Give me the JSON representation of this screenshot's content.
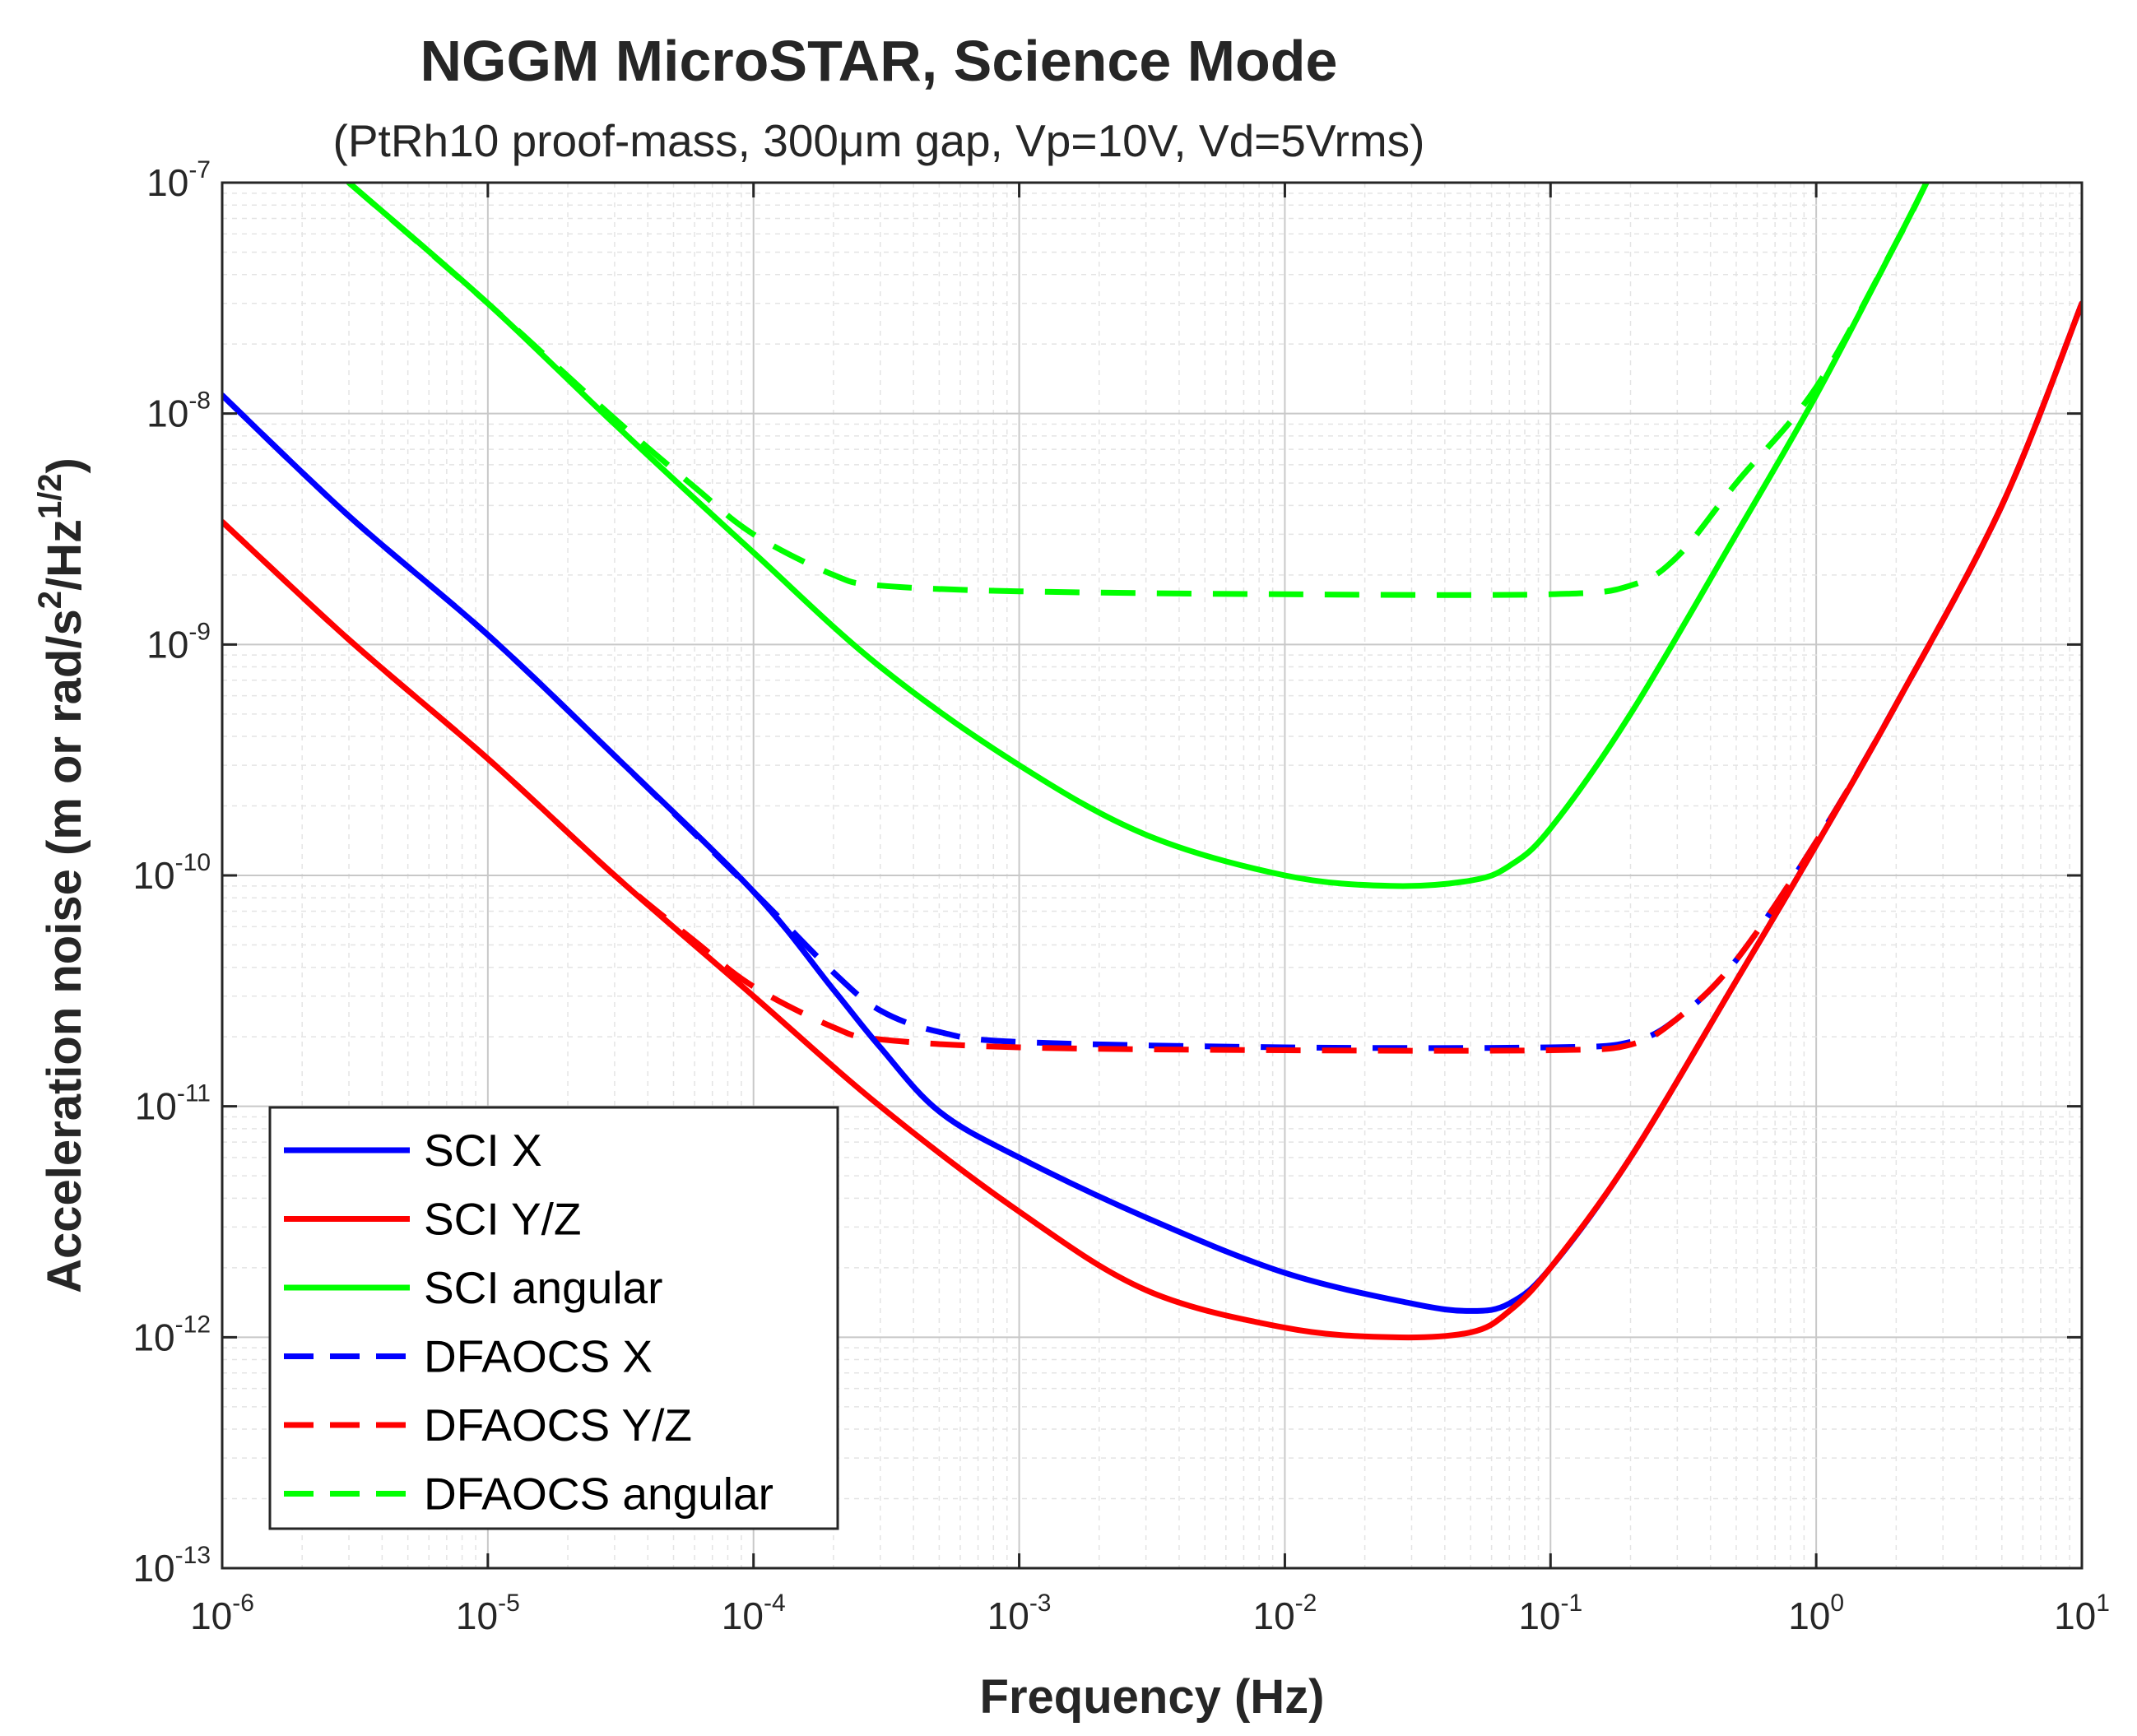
{
  "chart_data": {
    "type": "line",
    "title": "NGGM MicroSTAR, Science Mode",
    "subtitle": "(PtRh10 proof-mass, 300μm gap, Vp=10V, Vd=5Vrms)",
    "xlabel": "Frequency (Hz)",
    "ylabel": "Acceleration noise (m or rad/s",
    "ylabel_sup1": "2",
    "ylabel_mid": "/Hz",
    "ylabel_sup2": "1/2",
    "ylabel_end": ")",
    "xscale": "log",
    "yscale": "log",
    "xlim": [
      1e-06,
      10
    ],
    "ylim": [
      1e-13,
      1e-07
    ],
    "grid": true,
    "legend_position": "bottom-left",
    "xticks": [
      {
        "value": 1e-06,
        "base": "10",
        "exp": "-6"
      },
      {
        "value": 1e-05,
        "base": "10",
        "exp": "-5"
      },
      {
        "value": 0.0001,
        "base": "10",
        "exp": "-4"
      },
      {
        "value": 0.001,
        "base": "10",
        "exp": "-3"
      },
      {
        "value": 0.01,
        "base": "10",
        "exp": "-2"
      },
      {
        "value": 0.1,
        "base": "10",
        "exp": "-1"
      },
      {
        "value": 1,
        "base": "10",
        "exp": "0"
      },
      {
        "value": 10,
        "base": "10",
        "exp": "1"
      }
    ],
    "yticks": [
      {
        "value": 1e-13,
        "base": "10",
        "exp": "-13"
      },
      {
        "value": 1e-12,
        "base": "10",
        "exp": "-12"
      },
      {
        "value": 1e-11,
        "base": "10",
        "exp": "-11"
      },
      {
        "value": 1e-10,
        "base": "10",
        "exp": "-10"
      },
      {
        "value": 1e-09,
        "base": "10",
        "exp": "-9"
      },
      {
        "value": 1e-08,
        "base": "10",
        "exp": "-8"
      },
      {
        "value": 1e-07,
        "base": "10",
        "exp": "-7"
      }
    ],
    "series": [
      {
        "name": "SCI X",
        "color": "#0000ff",
        "dash": "solid",
        "x": [
          1e-06,
          3e-06,
          1e-05,
          3e-05,
          0.0001,
          0.0002,
          0.0003,
          0.0005,
          0.001,
          0.003,
          0.01,
          0.03,
          0.05,
          0.07,
          0.1,
          0.2,
          0.5,
          1,
          2,
          5,
          10
        ],
        "y": [
          1.2e-08,
          3.6e-09,
          1.1e-09,
          3.3e-10,
          8.5e-11,
          3.2e-11,
          1.8e-11,
          9.5e-12,
          6e-12,
          3.3e-12,
          1.9e-12,
          1.4e-12,
          1.3e-12,
          1.4e-12,
          2e-12,
          6e-12,
          3.5e-11,
          1.35e-10,
          5.5e-10,
          4e-09,
          3e-08
        ]
      },
      {
        "name": "SCI Y/Z",
        "color": "#ff0000",
        "dash": "solid",
        "x": [
          1e-06,
          3e-06,
          1e-05,
          3e-05,
          0.0001,
          0.0003,
          0.001,
          0.003,
          0.01,
          0.025,
          0.05,
          0.07,
          0.1,
          0.2,
          0.5,
          1,
          2,
          5,
          10
        ],
        "y": [
          3.4e-09,
          1.05e-09,
          3.2e-10,
          1e-10,
          3e-11,
          1e-11,
          3.5e-12,
          1.6e-12,
          1.1e-12,
          1e-12,
          1.05e-12,
          1.3e-12,
          2e-12,
          6e-12,
          3.5e-11,
          1.35e-10,
          5.5e-10,
          4e-09,
          3e-08
        ]
      },
      {
        "name": "SCI angular",
        "color": "#00ff00",
        "dash": "solid",
        "x": [
          3e-06,
          1e-05,
          3e-05,
          0.0001,
          0.0003,
          0.001,
          0.003,
          0.01,
          0.025,
          0.05,
          0.07,
          0.1,
          0.2,
          0.5,
          1,
          2,
          2.6
        ],
        "y": [
          1e-07,
          3e-08,
          9e-09,
          2.5e-09,
          8e-10,
          3e-10,
          1.5e-10,
          1e-10,
          9e-11,
          9.5e-11,
          1.1e-10,
          1.6e-10,
          5e-10,
          3e-09,
          1.2e-08,
          5.5e-08,
          1e-07
        ]
      },
      {
        "name": "DFAOCS X",
        "color": "#0000ff",
        "dash": "dashed",
        "x": [
          1e-06,
          3e-06,
          1e-05,
          3e-05,
          0.0001,
          0.0002,
          0.0003,
          0.0005,
          0.001,
          0.01,
          0.1,
          0.2,
          0.3,
          0.5,
          1,
          2,
          5,
          10
        ],
        "y": [
          1.2e-08,
          3.6e-09,
          1.1e-09,
          3.3e-10,
          8.5e-11,
          3.8e-11,
          2.6e-11,
          2.1e-11,
          1.9e-11,
          1.8e-11,
          1.8e-11,
          1.9e-11,
          2.4e-11,
          4.3e-11,
          1.4e-10,
          5.5e-10,
          4e-09,
          3e-08
        ]
      },
      {
        "name": "DFAOCS Y/Z",
        "color": "#ff0000",
        "dash": "dashed",
        "x": [
          1e-06,
          3e-06,
          1e-05,
          3e-05,
          6e-05,
          0.0001,
          0.0002,
          0.0003,
          0.001,
          0.01,
          0.1,
          0.2,
          0.3,
          0.5,
          1,
          2,
          5,
          10
        ],
        "y": [
          3.4e-09,
          1.05e-09,
          3.2e-10,
          1e-10,
          5.2e-11,
          3.3e-11,
          2.2e-11,
          1.95e-11,
          1.8e-11,
          1.75e-11,
          1.75e-11,
          1.85e-11,
          2.4e-11,
          4.3e-11,
          1.4e-10,
          5.5e-10,
          4e-09,
          3e-08
        ]
      },
      {
        "name": "DFAOCS angular",
        "color": "#00ff00",
        "dash": "dashed",
        "x": [
          3e-06,
          1e-05,
          3e-05,
          6e-05,
          0.0001,
          0.0002,
          0.0003,
          0.001,
          0.01,
          0.1,
          0.2,
          0.3,
          0.5,
          1,
          2,
          2.6
        ],
        "y": [
          1e-07,
          3e-08,
          9.5e-09,
          4.8e-09,
          3e-09,
          2e-09,
          1.8e-09,
          1.7e-09,
          1.65e-09,
          1.65e-09,
          1.8e-09,
          2.4e-09,
          5e-09,
          1.3e-08,
          5.5e-08,
          1e-07
        ]
      }
    ]
  }
}
